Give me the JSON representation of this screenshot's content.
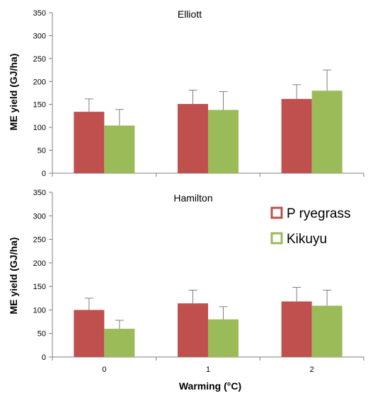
{
  "chart_data": {
    "type": "bar",
    "xlabel": "Warming (°C)",
    "ylabel": "ME yield (GJ/ha)",
    "categories": [
      "0",
      "1",
      "2"
    ],
    "colors": {
      "P ryegrass": "#c0504d",
      "Kikuyu": "#9bbb59"
    },
    "legend": {
      "placement": "right, inside lower panel",
      "entries": [
        "P ryegrass",
        "Kikuyu"
      ]
    },
    "panels": [
      {
        "title": "Elliott",
        "ylim": [
          0,
          350
        ],
        "yticks": [
          0,
          50,
          100,
          150,
          200,
          250,
          300,
          350
        ],
        "series": [
          {
            "name": "P ryegrass",
            "values": [
              134,
              151,
              162
            ],
            "errors": [
              28,
              30,
              31
            ]
          },
          {
            "name": "Kikuyu",
            "values": [
              104,
              138,
              180
            ],
            "errors": [
              35,
              40,
              45
            ]
          }
        ]
      },
      {
        "title": "Hamilton",
        "ylim": [
          0,
          350
        ],
        "yticks": [
          0,
          50,
          100,
          150,
          200,
          250,
          300,
          350
        ],
        "series": [
          {
            "name": "P ryegrass",
            "values": [
              100,
              114,
              118
            ],
            "errors": [
              25,
              28,
              30
            ]
          },
          {
            "name": "Kikuyu",
            "values": [
              60,
              80,
              109
            ],
            "errors": [
              18,
              27,
              33
            ]
          }
        ]
      }
    ]
  }
}
